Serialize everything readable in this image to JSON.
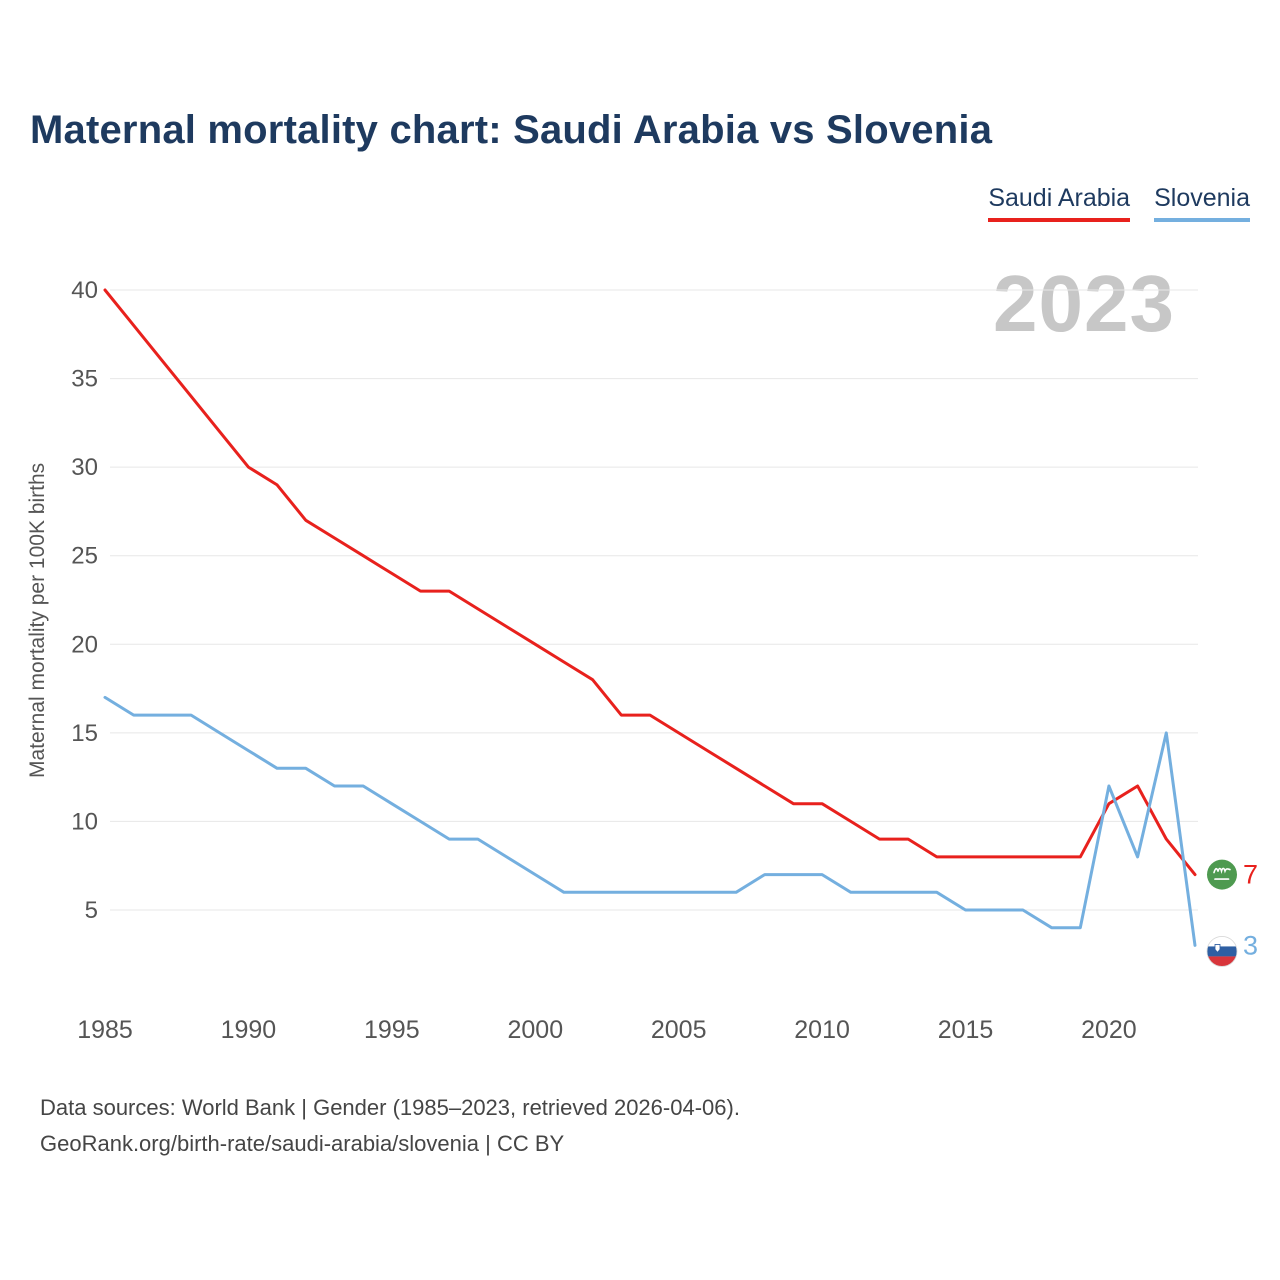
{
  "page": {
    "title": "Maternal mortality chart: Saudi Arabia vs Slovenia",
    "watermark": "2023",
    "footer_line1": "Data sources: World Bank | Gender (1985–2023, retrieved 2026-04-06).",
    "footer_line2": "GeoRank.org/birth-rate/saudi-arabia/slovenia | CC BY"
  },
  "legend": {
    "items": [
      {
        "label": "Saudi Arabia",
        "color": "#e8211d"
      },
      {
        "label": "Slovenia",
        "color": "#74afdf"
      }
    ]
  },
  "colors": {
    "title": "#1e3a5f",
    "gridline": "#e7e7e7",
    "tick_label": "#555555",
    "watermark": "#c7c7c7",
    "saudi_flag_green": "#4e9a50",
    "slovenia_flag_blue": "#2e5fa3",
    "slovenia_flag_red": "#d8353b"
  },
  "chart_data": {
    "type": "line",
    "title": "Maternal mortality chart: Saudi Arabia vs Slovenia",
    "xlabel": "",
    "ylabel": "Maternal mortality per 100K births",
    "grid": "horizontal",
    "legend_position": "top-right",
    "ylim": [
      2,
      41
    ],
    "y_ticks": [
      5,
      10,
      15,
      20,
      25,
      30,
      35,
      40
    ],
    "x_ticks": [
      1985,
      1990,
      1995,
      2000,
      2005,
      2010,
      2015,
      2020
    ],
    "x": [
      1985,
      1986,
      1987,
      1988,
      1989,
      1990,
      1991,
      1992,
      1993,
      1994,
      1995,
      1996,
      1997,
      1998,
      1999,
      2000,
      2001,
      2002,
      2003,
      2004,
      2005,
      2006,
      2007,
      2008,
      2009,
      2010,
      2011,
      2012,
      2013,
      2014,
      2015,
      2016,
      2017,
      2018,
      2019,
      2020,
      2021,
      2022,
      2023
    ],
    "series": [
      {
        "id": "saudi-arabia",
        "name": "Saudi Arabia",
        "color": "#e8211d",
        "flag": "saudi-arabia-flag",
        "end_label": "7",
        "values": [
          40,
          38,
          36,
          34,
          32,
          30,
          29,
          27,
          26,
          25,
          24,
          23,
          23,
          22,
          21,
          20,
          19,
          18,
          16,
          16,
          15,
          14,
          13,
          12,
          11,
          11,
          10,
          9,
          9,
          8,
          8,
          8,
          8,
          8,
          8,
          11,
          12,
          9,
          7
        ]
      },
      {
        "id": "slovenia",
        "name": "Slovenia",
        "color": "#74afdf",
        "flag": "slovenia-flag",
        "end_label": "3",
        "values": [
          17,
          16,
          16,
          16,
          15,
          14,
          13,
          13,
          12,
          12,
          11,
          10,
          9,
          9,
          8,
          7,
          6,
          6,
          6,
          6,
          6,
          6,
          6,
          7,
          7,
          7,
          6,
          6,
          6,
          6,
          5,
          5,
          5,
          4,
          4,
          12,
          8,
          15,
          3
        ]
      }
    ]
  }
}
